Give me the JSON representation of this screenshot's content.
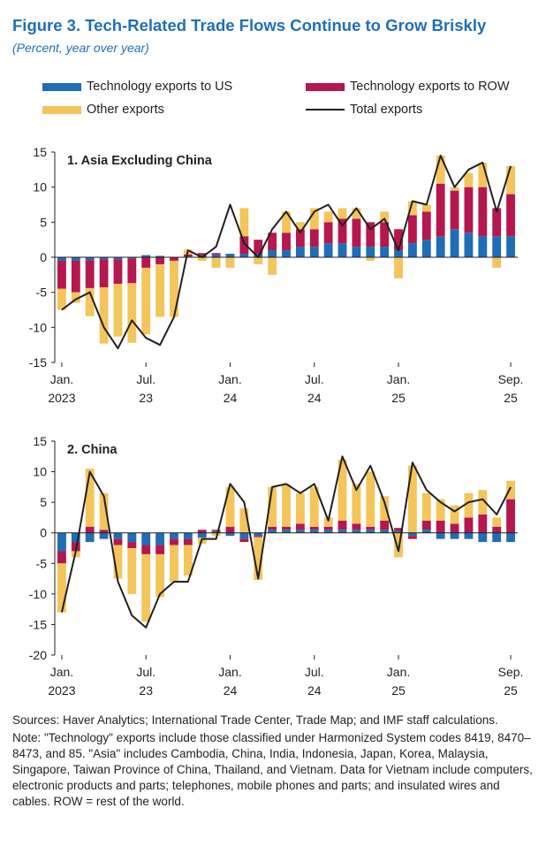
{
  "figure": {
    "title": "Figure 3.  Tech-Related Trade Flows Continue to Grow Briskly",
    "subtitle": "(Percent, year over year)"
  },
  "legend": [
    {
      "label": "Technology exports to US",
      "color": "#1f6db5",
      "kind": "bar"
    },
    {
      "label": "Technology exports to ROW",
      "color": "#b5174f",
      "kind": "bar"
    },
    {
      "label": "Other exports",
      "color": "#f3c55b",
      "kind": "bar"
    },
    {
      "label": "Total exports",
      "color": "#231f20",
      "kind": "line"
    }
  ],
  "x_ticks": [
    {
      "index": 0,
      "line1": "Jan.",
      "line2": "2023"
    },
    {
      "index": 6,
      "line1": "Jul.",
      "line2": "23"
    },
    {
      "index": 12,
      "line1": "Jan.",
      "line2": "24"
    },
    {
      "index": 18,
      "line1": "Jul.",
      "line2": "24"
    },
    {
      "index": 24,
      "line1": "Jan.",
      "line2": "25"
    },
    {
      "index": 32,
      "line1": "Sep.",
      "line2": "25"
    }
  ],
  "chart_data": [
    {
      "type": "bar",
      "stacked": true,
      "title": "1. Asia Excluding China",
      "ylim": [
        -15,
        15
      ],
      "yticks": [
        "-15",
        "-10",
        "-5",
        "0",
        "5",
        "10",
        "15"
      ],
      "categories": [
        "Jan-23",
        "Feb-23",
        "Mar-23",
        "Apr-23",
        "May-23",
        "Jun-23",
        "Jul-23",
        "Aug-23",
        "Sep-23",
        "Oct-23",
        "Nov-23",
        "Dec-23",
        "Jan-24",
        "Feb-24",
        "Mar-24",
        "Apr-24",
        "May-24",
        "Jun-24",
        "Jul-24",
        "Aug-24",
        "Sep-24",
        "Oct-24",
        "Nov-24",
        "Dec-24",
        "Jan-25",
        "Feb-25",
        "Mar-25",
        "Apr-25",
        "May-25",
        "Jun-25",
        "Jul-25",
        "Aug-25",
        "Sep-25"
      ],
      "series": [
        {
          "name": "Technology exports to US",
          "values": [
            -0.5,
            -0.5,
            -0.4,
            -0.3,
            -0.3,
            -0.2,
            0.3,
            0.2,
            0.0,
            0.1,
            0.3,
            0.4,
            0.5,
            0.5,
            0.5,
            1.0,
            1.0,
            1.5,
            1.5,
            2.0,
            2.0,
            1.5,
            1.5,
            1.5,
            1.0,
            2.0,
            2.5,
            3.0,
            4.0,
            3.5,
            3.0,
            3.0,
            3.0
          ]
        },
        {
          "name": "Technology exports to ROW",
          "values": [
            -4.0,
            -4.5,
            -4.0,
            -4.0,
            -3.5,
            -3.5,
            -1.5,
            -1.0,
            -0.5,
            0.3,
            0.3,
            0.2,
            0.0,
            2.5,
            2.0,
            2.5,
            2.5,
            2.5,
            2.5,
            3.0,
            3.5,
            4.0,
            3.5,
            3.5,
            3.0,
            4.0,
            4.0,
            7.5,
            5.5,
            6.5,
            7.0,
            4.0,
            6.0
          ]
        },
        {
          "name": "Other exports",
          "values": [
            -3.0,
            -1.5,
            -4.0,
            -8.0,
            -7.5,
            -8.5,
            -9.5,
            -7.5,
            -8.0,
            0.7,
            -0.5,
            -1.5,
            -1.5,
            4.0,
            -1.0,
            -2.5,
            3.0,
            1.0,
            3.0,
            1.5,
            1.5,
            1.5,
            -0.5,
            1.5,
            -3.0,
            2.0,
            1.0,
            4.0,
            0.5,
            2.0,
            3.5,
            -1.5,
            4.0
          ]
        },
        {
          "name": "Total exports",
          "kind": "line",
          "values": [
            -7.5,
            -6.0,
            -5.0,
            -10.0,
            -13.0,
            -9.0,
            -11.5,
            -12.5,
            -8.5,
            1.0,
            0.0,
            1.5,
            7.5,
            2.0,
            0.0,
            4.0,
            6.5,
            3.5,
            6.5,
            7.5,
            4.5,
            7.0,
            4.0,
            5.5,
            1.0,
            8.0,
            7.5,
            14.5,
            10.0,
            12.5,
            13.5,
            6.5,
            13.0
          ]
        }
      ]
    },
    {
      "type": "bar",
      "stacked": true,
      "title": "2. China",
      "ylim": [
        -20,
        15
      ],
      "yticks": [
        "-20",
        "-15",
        "-10",
        "-5",
        "0",
        "5",
        "10",
        "15"
      ],
      "categories": [
        "Jan-23",
        "Feb-23",
        "Mar-23",
        "Apr-23",
        "May-23",
        "Jun-23",
        "Jul-23",
        "Aug-23",
        "Sep-23",
        "Oct-23",
        "Nov-23",
        "Dec-23",
        "Jan-24",
        "Feb-24",
        "Mar-24",
        "Apr-24",
        "May-24",
        "Jun-24",
        "Jul-24",
        "Aug-24",
        "Sep-24",
        "Oct-24",
        "Nov-24",
        "Dec-24",
        "Jan-25",
        "Feb-25",
        "Mar-25",
        "Apr-25",
        "May-25",
        "Jun-25",
        "Jul-25",
        "Aug-25",
        "Sep-25"
      ],
      "series": [
        {
          "name": "Technology exports to US",
          "values": [
            -3.0,
            -1.5,
            -1.5,
            -1.0,
            -1.0,
            -1.5,
            -2.0,
            -2.0,
            -1.0,
            -1.0,
            -0.8,
            0.3,
            -0.5,
            -1.0,
            -0.5,
            0.5,
            0.5,
            0.5,
            0.5,
            0.5,
            0.5,
            0.5,
            0.5,
            0.5,
            0.3,
            -0.5,
            0.5,
            -1.0,
            -1.0,
            -1.0,
            -1.5,
            -1.5,
            -1.5
          ]
        },
        {
          "name": "Technology exports to ROW",
          "values": [
            -2.0,
            -1.5,
            1.0,
            0.5,
            -1.0,
            -1.0,
            -1.5,
            -1.5,
            -1.0,
            -1.0,
            0.5,
            0.2,
            1.0,
            -0.5,
            -0.2,
            0.5,
            0.5,
            1.0,
            0.5,
            0.5,
            1.5,
            1.0,
            0.5,
            1.5,
            0.5,
            -0.5,
            1.5,
            2.0,
            1.5,
            2.5,
            3.0,
            1.0,
            5.5
          ]
        },
        {
          "name": "Other exports",
          "values": [
            -8.0,
            -1.0,
            9.5,
            6.0,
            -5.5,
            -7.5,
            -11.0,
            -7.0,
            -6.0,
            -5.0,
            -1.0,
            -0.5,
            6.5,
            4.0,
            -7.0,
            6.5,
            7.0,
            5.0,
            6.5,
            1.5,
            10.0,
            6.5,
            9.0,
            4.0,
            -4.0,
            11.0,
            4.5,
            3.5,
            3.0,
            4.0,
            4.0,
            1.5,
            3.0
          ]
        },
        {
          "name": "Total exports",
          "kind": "line",
          "values": [
            -13.0,
            -3.0,
            10.0,
            6.0,
            -8.0,
            -13.5,
            -15.5,
            -10.0,
            -8.0,
            -8.0,
            -1.0,
            -1.0,
            8.0,
            5.0,
            -7.5,
            7.5,
            8.0,
            6.5,
            8.0,
            2.0,
            12.5,
            7.0,
            11.0,
            5.0,
            -3.0,
            11.5,
            7.0,
            5.0,
            3.5,
            5.0,
            5.5,
            3.0,
            7.5
          ]
        }
      ]
    }
  ],
  "notes": {
    "sources": "Sources: Haver Analytics; International Trade Center, Trade Map; and IMF staff calculations.",
    "note": "Note: \"Technology\" exports include those classified under Harmonized System codes 8419, 8470–8473, and 85. \"Asia\" includes Cambodia, China, India, Indonesia, Japan, Korea, Malaysia, Singapore, Taiwan Province of China, Thailand, and Vietnam. Data for Vietnam include computers, electronic products and parts; telephones, mobile phones and parts; and insulated wires and cables. ROW = rest of the world."
  }
}
